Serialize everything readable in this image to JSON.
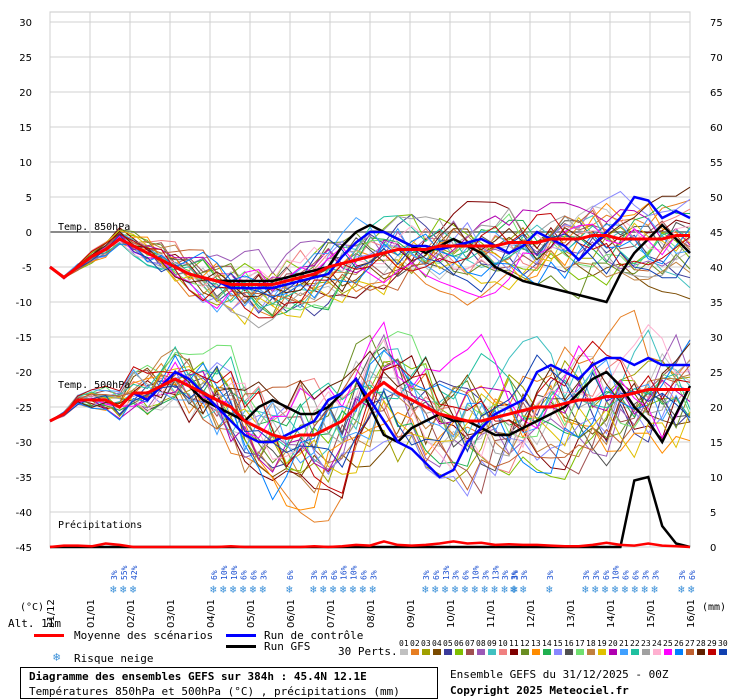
{
  "chart_data": {
    "type": "line",
    "x_date_labels": [
      "31/12",
      "01/01",
      "02/01",
      "03/01",
      "04/01",
      "05/01",
      "06/01",
      "07/01",
      "08/01",
      "09/01",
      "10/01",
      "11/01",
      "12/01",
      "13/01",
      "14/01",
      "15/01",
      "16/01"
    ],
    "x_unit": "(mm)",
    "y_unit_left": "(°C)",
    "y_left_ticks": [
      30,
      25,
      20,
      15,
      10,
      5,
      0,
      -5,
      -10,
      -15,
      -20,
      -25,
      -30,
      -35,
      -40,
      -45
    ],
    "y_right_ticks": [
      75,
      70,
      65,
      60,
      55,
      50,
      45,
      40,
      35,
      30,
      25,
      20,
      15,
      10,
      5,
      0
    ],
    "y_left_range": [
      -45,
      30
    ],
    "y_right_range": [
      0,
      75
    ],
    "panels": {
      "t850_label": "Temp. 850hPa",
      "t500_label": "Temp. 500hPa",
      "precip_label": "Précipitations"
    },
    "series_850": [
      {
        "name": "Moyenne des scénarios",
        "color": "#ff0000",
        "values": [
          -5,
          -6.5,
          -5,
          -3.5,
          -2.5,
          -1,
          -2,
          -3,
          -4,
          -5,
          -6,
          -6.5,
          -7,
          -7.5,
          -7.5,
          -7.5,
          -7.5,
          -7,
          -6.5,
          -6,
          -5,
          -4.5,
          -4,
          -3.5,
          -3,
          -2.5,
          -2.5,
          -2.5,
          -2,
          -2,
          -2,
          -2,
          -2,
          -1.5,
          -1.5,
          -1.5,
          -1,
          -1,
          -1,
          -0.5,
          -0.5,
          -1,
          -1,
          -1,
          -1,
          -0.5,
          -0.5
        ]
      },
      {
        "name": "Run de contrôle",
        "color": "#0000ff",
        "values": [
          -5,
          -6.5,
          -5,
          -3.5,
          -2.5,
          -1,
          -2,
          -3,
          -4,
          -5,
          -6,
          -6.5,
          -7,
          -8,
          -8,
          -8,
          -8,
          -7.5,
          -7,
          -6.5,
          -6,
          -3.5,
          -1.5,
          0,
          0,
          -1,
          -2,
          -2,
          -2.5,
          -2,
          -1.5,
          -1,
          -2,
          -3,
          -2,
          0,
          -1,
          -2,
          -4,
          -2,
          0,
          2,
          5,
          4.5,
          2,
          3,
          2
        ]
      },
      {
        "name": "Run GFS",
        "color": "#000000",
        "values": [
          -5,
          -6.5,
          -5,
          -3.5,
          -2.5,
          -1,
          -2,
          -3,
          -4,
          -5,
          -6,
          -6.5,
          -7,
          -7,
          -7,
          -7,
          -7,
          -6.5,
          -6,
          -5.5,
          -5,
          -2,
          0,
          1,
          0,
          -1,
          -2,
          -3,
          -2,
          -1,
          -2,
          -3,
          -5,
          -6,
          -7,
          -7.5,
          -8,
          -8.5,
          -9,
          -9.5,
          -10,
          -6,
          -3,
          -1,
          1,
          -1,
          -3
        ]
      }
    ],
    "series_500": [
      {
        "name": "Moyenne des scénarios",
        "color": "#ff0000",
        "values": [
          -27,
          -26,
          -24,
          -24,
          -24,
          -25,
          -23,
          -23,
          -22,
          -21,
          -22,
          -23,
          -24,
          -25,
          -27,
          -28,
          -29,
          -29.5,
          -29,
          -29,
          -28,
          -27,
          -25,
          -23,
          -21.5,
          -23,
          -24,
          -25,
          -26,
          -26.5,
          -27,
          -27,
          -26.5,
          -26,
          -25.5,
          -25,
          -25,
          -24.5,
          -24,
          -24,
          -23.5,
          -23.5,
          -23,
          -22.5,
          -22.5,
          -22.5,
          -22.5
        ]
      },
      {
        "name": "Run de contrôle",
        "color": "#0000ff",
        "values": [
          -27,
          -26,
          -24,
          -24,
          -24,
          -25,
          -23,
          -24,
          -22,
          -20,
          -21,
          -23,
          -25,
          -27,
          -29,
          -30,
          -30,
          -29,
          -28,
          -27,
          -24,
          -23,
          -21,
          -24,
          -27,
          -30,
          -31,
          -33,
          -35,
          -34,
          -30,
          -28,
          -26,
          -25,
          -24,
          -20,
          -19,
          -20,
          -21,
          -19,
          -18,
          -18,
          -19,
          -18,
          -19,
          -19,
          -19
        ]
      },
      {
        "name": "Run GFS",
        "color": "#000000",
        "values": [
          -27,
          -26,
          -24,
          -24,
          -24,
          -25,
          -23,
          -24,
          -22,
          -21,
          -22,
          -24,
          -25,
          -26,
          -27,
          -25,
          -24,
          -25,
          -26,
          -26,
          -25,
          -23,
          -21,
          -25,
          -29,
          -30,
          -28,
          -27,
          -26,
          -27,
          -27,
          -28,
          -29,
          -29,
          -28,
          -27,
          -26,
          -25,
          -23,
          -21,
          -20,
          -22,
          -25,
          -27,
          -30,
          -26,
          -22
        ]
      }
    ],
    "series_precip": [
      {
        "name": "Moyenne des scénarios",
        "color": "#ff0000",
        "values": [
          0,
          0.2,
          0.2,
          0.1,
          0.5,
          0.3,
          0,
          0,
          0,
          0,
          0,
          0,
          0,
          0.1,
          0,
          0,
          0,
          0,
          0,
          0.1,
          0,
          0.1,
          0.3,
          0.2,
          0.8,
          0.3,
          0.2,
          0.3,
          0.5,
          0.8,
          0.5,
          0.6,
          0.3,
          0.4,
          0.3,
          0.3,
          0.2,
          0.1,
          0.1,
          0.3,
          0.6,
          0.3,
          0.2,
          0.5,
          0.2,
          0.1,
          0
        ]
      },
      {
        "name": "Run GFS",
        "color": "#000000",
        "values": [
          0,
          0,
          0,
          0,
          0,
          0,
          0,
          0,
          0,
          0,
          0,
          0,
          0,
          0,
          0,
          0,
          0,
          0,
          0,
          0,
          0,
          0,
          0,
          0,
          0,
          0,
          0,
          0,
          0,
          0,
          0,
          0,
          0,
          0,
          0,
          0,
          0,
          0,
          0,
          0,
          0,
          0,
          9.5,
          10,
          3,
          0.5,
          0
        ]
      }
    ],
    "snow_risk": [
      {
        "date_index": 1.6,
        "values": [
          "3%",
          "55%",
          "42%"
        ]
      },
      {
        "date_index": 4.1,
        "values": [
          "6%",
          "10%",
          "10%",
          "6%",
          "6%",
          "3%"
        ]
      },
      {
        "date_index": 6.0,
        "values": [
          "6%"
        ]
      },
      {
        "date_index": 6.6,
        "values": [
          "3%",
          "3%",
          "6%",
          "16%",
          "10%",
          "6%",
          "3%"
        ]
      },
      {
        "date_index": 9.4,
        "values": [
          "3%",
          "6%",
          "13%",
          "3%",
          "6%",
          "10%",
          "3%",
          "13%",
          "3%",
          "3%"
        ]
      },
      {
        "date_index": 11.6,
        "values": [
          "3%",
          "3%"
        ]
      },
      {
        "date_index": 12.5,
        "values": [
          "3%"
        ]
      },
      {
        "date_index": 13.4,
        "values": [
          "3%",
          "3%",
          "6%",
          "10%",
          "6%",
          "6%",
          "3%",
          "3%"
        ]
      },
      {
        "date_index": 15.8,
        "values": [
          "3%",
          "6%"
        ]
      }
    ],
    "legend": {
      "mean": "Moyenne des scénarios",
      "control": "Run de contrôle",
      "gfs": "Run GFS",
      "snow": "Risque neige",
      "perts": "30 Perts.",
      "alt": "Alt. 11m"
    },
    "pert_numbers": [
      "01",
      "02",
      "03",
      "04",
      "05",
      "06",
      "07",
      "08",
      "09",
      "10",
      "11",
      "12",
      "13",
      "14",
      "15",
      "16",
      "17",
      "18",
      "19",
      "20",
      "21",
      "22",
      "23",
      "24",
      "25",
      "26",
      "27",
      "28",
      "29",
      "30"
    ],
    "pert_colors": [
      "#c0c0c0",
      "#e67e22",
      "#a0a000",
      "#7a4a00",
      "#3b3b9a",
      "#7fbf00",
      "#a05050",
      "#9b59b6",
      "#40c0c0",
      "#f08080",
      "#800000",
      "#6b8e23",
      "#ff8c00",
      "#20b050",
      "#8888ff",
      "#505050",
      "#70e070",
      "#c08040",
      "#e0c000",
      "#b000b0",
      "#40a0ff",
      "#20c0a0",
      "#a0a0a0",
      "#ffb0d0",
      "#ff00ff",
      "#0080ff",
      "#c06030",
      "#602000",
      "#c00000",
      "#1040b0"
    ],
    "footer": {
      "title": "Diagramme des ensembles GEFS sur 384h : 45.4N 12.1E",
      "subtitle": "Températures 850hPa et 500hPa (°C) , précipitations (mm)",
      "ensemble": "Ensemble GEFS du 31/12/2025 - 00Z",
      "copyright": "Copyright 2025 Meteociel.fr"
    }
  }
}
